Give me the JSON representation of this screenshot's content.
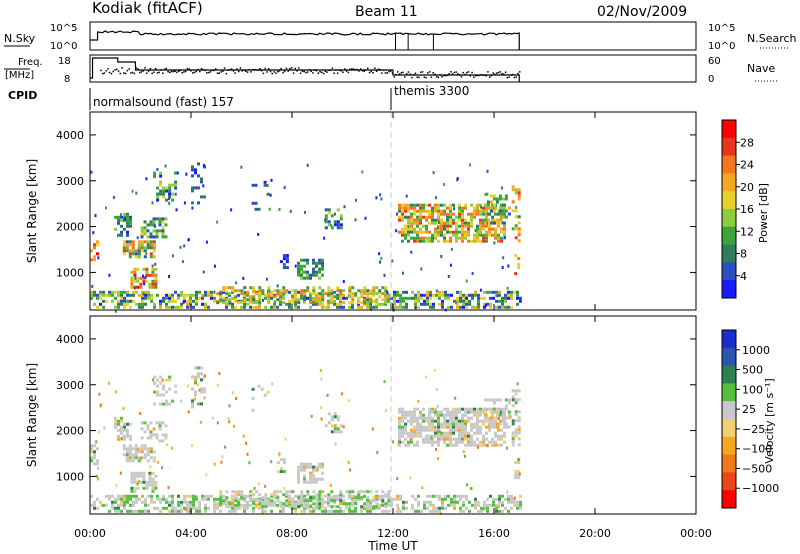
{
  "header": {
    "station": "Kodiak (fitACF)",
    "beam": "Beam 11",
    "date": "02/Nov/2009"
  },
  "strips": {
    "nsky_label": "N.Sky",
    "nsky_ticks": [
      "10^5",
      "10^0"
    ],
    "nsearch_label": "N.Search",
    "freq_label_top": "Freq.",
    "freq_label_unit": "[MHz]",
    "freq_ticks": [
      "18",
      "8"
    ],
    "nave_label": "Nave",
    "nave_ticks": [
      "60",
      "0"
    ],
    "cpid_label": "CPID",
    "cpid_modes": [
      {
        "label": "normalsound (fast) 157",
        "start_hour": 0.0
      },
      {
        "label": "themis 3300",
        "start_hour": 12.0
      }
    ]
  },
  "chart_data": [
    {
      "type": "heatmap",
      "name": "power",
      "xlabel": "",
      "ylabel": "Slant Range [km]",
      "x_range_hours": [
        0,
        24
      ],
      "y_range_km": [
        180,
        4500
      ],
      "yticks": [
        1000,
        2000,
        3000,
        4000
      ],
      "colorbar": {
        "label": "Power [dB]",
        "ticks": [
          "4",
          "8",
          "12",
          "16",
          "20",
          "24",
          "28"
        ],
        "colors": [
          "#1a1aff",
          "#2a4fc0",
          "#2f7d5a",
          "#3aa53a",
          "#8ccd3a",
          "#e8d02a",
          "#f5a623",
          "#f2781c",
          "#e8361c",
          "#ff0000"
        ]
      }
    },
    {
      "type": "heatmap",
      "name": "velocity",
      "xlabel": "Time UT",
      "ylabel": "Slant Range [km]",
      "x_range_hours": [
        0,
        24
      ],
      "y_range_km": [
        180,
        4500
      ],
      "yticks": [
        1000,
        2000,
        3000,
        4000
      ],
      "xticks": [
        "00:00",
        "04:00",
        "08:00",
        "12:00",
        "16:00",
        "20:00",
        "00:00"
      ],
      "colorbar": {
        "label": "Velocity [m s⁻¹]",
        "ticks": [
          "1000",
          "500",
          "100",
          "25",
          "−25",
          "−100",
          "−500",
          "−1000"
        ],
        "colors": [
          "#1a2ecc",
          "#2a55b0",
          "#2f8050",
          "#55c040",
          "#c8c8c8",
          "#f0d070",
          "#f5a623",
          "#f2781c",
          "#ee4418",
          "#ff0000"
        ]
      }
    }
  ]
}
